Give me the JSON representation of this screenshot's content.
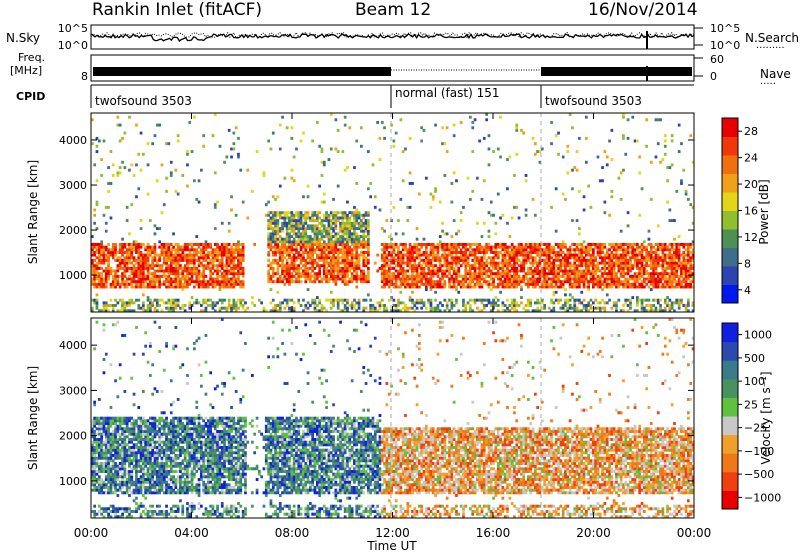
{
  "header": {
    "title": "Rankin Inlet (fitACF)",
    "beam": "Beam 12",
    "date": "16/Nov/2014"
  },
  "top_panels": {
    "nsky_label": "N.Sky",
    "nsearch_label": "N.Search",
    "nsky_ticks": [
      "10^5",
      "10^0"
    ],
    "nsearch_ticks": [
      "10^5",
      "10^0"
    ],
    "freq_label_1": "Freq.",
    "freq_label_2": "[MHz]",
    "freq_ticks": [
      "8"
    ],
    "nave_label": "Nave",
    "nave_ticks": [
      "60",
      "0"
    ],
    "cpid_label": "CPID",
    "cpid_segments": [
      {
        "label": "twofsound 3503",
        "start": 0,
        "end": 12
      },
      {
        "label": "normal (fast) 151",
        "start": 12,
        "end": 18
      },
      {
        "label": "twofsound 3503",
        "start": 18,
        "end": 24
      }
    ]
  },
  "chart_data": [
    {
      "type": "heatmap",
      "title": "",
      "xlabel": "Time UT",
      "ylabel": "Slant Range [km]",
      "xlim": [
        0,
        24
      ],
      "ylim": [
        180,
        4600
      ],
      "x_ticks": [
        "00:00",
        "04:00",
        "08:00",
        "12:00",
        "16:00",
        "20:00",
        "00:00"
      ],
      "y_ticks": [
        1000,
        2000,
        3000,
        4000
      ],
      "colorbar": {
        "label": "Power [dB]",
        "ticks": [
          "28",
          "24",
          "20",
          "16",
          "12",
          "8",
          "4"
        ],
        "range": [
          0,
          30
        ],
        "colors": [
          "#0018ee",
          "#2d44b0",
          "#3f6e8a",
          "#4e8f56",
          "#8fbf2e",
          "#e4d41a",
          "#f0a018",
          "#f07010",
          "#f03808",
          "#e80000"
        ]
      },
      "dominant_bands": [
        {
          "x_start": 0,
          "x_end": 6,
          "range_low": 700,
          "range_high": 1700,
          "power": 26
        },
        {
          "x_start": 11.5,
          "x_end": 24,
          "range_low": 700,
          "range_high": 1700,
          "power": 24
        },
        {
          "x_start": 7,
          "x_end": 11,
          "range_low": 800,
          "range_high": 2400,
          "power": 22
        }
      ]
    },
    {
      "type": "heatmap",
      "title": "",
      "xlabel": "Time UT",
      "ylabel": "Slant Range [km]",
      "xlim": [
        0,
        24
      ],
      "ylim": [
        180,
        4600
      ],
      "x_ticks": [
        "00:00",
        "04:00",
        "08:00",
        "12:00",
        "16:00",
        "20:00",
        "00:00"
      ],
      "y_ticks": [
        1000,
        2000,
        3000,
        4000
      ],
      "colorbar": {
        "label": "Velocity [m s⁻¹]",
        "ticks": [
          "1000",
          "500",
          "100",
          "25",
          "−25",
          "−100",
          "−500",
          "−1000"
        ],
        "range": [
          -1000,
          1000
        ],
        "colors": [
          "#e80000",
          "#f04010",
          "#f07818",
          "#f0a028",
          "#c8c8c8",
          "#60c040",
          "#4a9060",
          "#3a7a8a",
          "#2a4ab0",
          "#1020e0"
        ]
      },
      "dominant_bands": [
        {
          "x_start": 0,
          "x_end": 11.5,
          "range_low": 700,
          "range_high": 2400,
          "velocity": 400
        },
        {
          "x_start": 11.5,
          "x_end": 24,
          "range_low": 700,
          "range_high": 2200,
          "velocity": -300
        }
      ]
    }
  ]
}
